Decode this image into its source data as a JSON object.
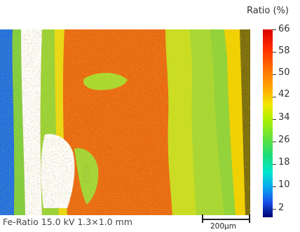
{
  "colorbar": {
    "title": "Ratio (%)",
    "ticks": [
      "66",
      "58",
      "50",
      "42",
      "34",
      "26",
      "18",
      "10",
      "2"
    ]
  },
  "caption": "Fe-Ratio 15.0 kV  1.3×1.0 mm",
  "scalebar": {
    "label": "200µm"
  },
  "colors": {
    "high": "#e25a10",
    "mid": "#f6d400",
    "low_green": "#8bd63a",
    "blue": "#1f6fe0",
    "void": "#ffffff"
  }
}
